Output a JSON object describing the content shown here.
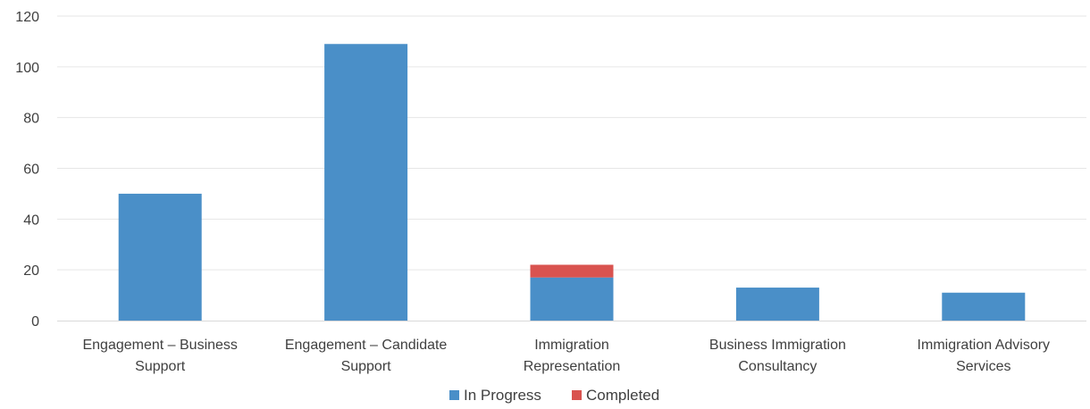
{
  "chart_data": {
    "type": "bar",
    "stacked": true,
    "title": "",
    "xlabel": "",
    "ylabel": "",
    "ylim": [
      0,
      120
    ],
    "yticks": [
      0,
      20,
      40,
      60,
      80,
      100,
      120
    ],
    "grid": true,
    "legend_position": "bottom",
    "categories": [
      [
        "Engagement – Business",
        "Support"
      ],
      [
        "Engagement – Candidate",
        "Support"
      ],
      [
        "Immigration",
        "Representation"
      ],
      [
        "Business Immigration",
        "Consultancy"
      ],
      [
        "Immigration Advisory",
        "Services"
      ]
    ],
    "series": [
      {
        "name": "In Progress",
        "color": "#4a8fc8",
        "values": [
          50,
          109,
          17,
          13,
          11
        ]
      },
      {
        "name": "Completed",
        "color": "#d9534f",
        "values": [
          0,
          0,
          5,
          0,
          0
        ]
      }
    ]
  }
}
